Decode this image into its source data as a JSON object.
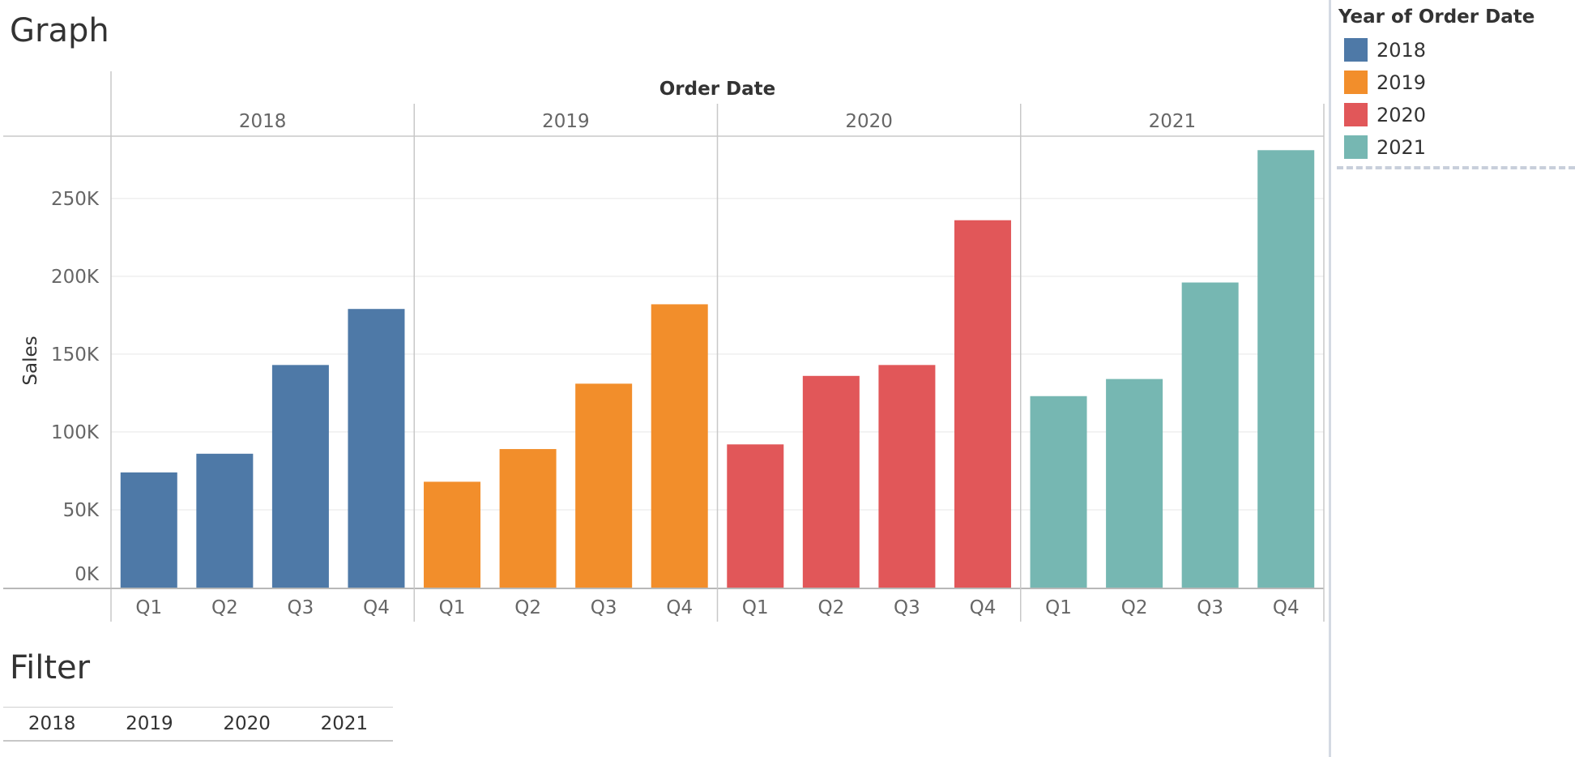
{
  "graph_title": "Graph",
  "filter_title": "Filter",
  "legend": {
    "title": "Year of Order Date",
    "items": [
      {
        "label": "2018",
        "color": "#4e79a7"
      },
      {
        "label": "2019",
        "color": "#f28e2b"
      },
      {
        "label": "2020",
        "color": "#e15759"
      },
      {
        "label": "2021",
        "color": "#76b7b2"
      }
    ]
  },
  "filter": {
    "items": [
      "2018",
      "2019",
      "2020",
      "2021"
    ]
  },
  "chart_data": {
    "type": "bar",
    "column_header": "Order Date",
    "ylabel": "Sales",
    "ylim": [
      0,
      290000
    ],
    "yticks": [
      0,
      50000,
      100000,
      150000,
      200000,
      250000
    ],
    "ytick_labels": [
      "0K",
      "50K",
      "100K",
      "150K",
      "200K",
      "250K"
    ],
    "categories": [
      "Q1",
      "Q2",
      "Q3",
      "Q4"
    ],
    "groups": [
      {
        "name": "2018",
        "color": "#4e79a7",
        "values": [
          74000,
          86000,
          143000,
          179000
        ]
      },
      {
        "name": "2019",
        "color": "#f28e2b",
        "values": [
          68000,
          89000,
          131000,
          182000
        ]
      },
      {
        "name": "2020",
        "color": "#e15759",
        "values": [
          92000,
          136000,
          143000,
          236000
        ]
      },
      {
        "name": "2021",
        "color": "#76b7b2",
        "values": [
          123000,
          134000,
          196000,
          281000
        ]
      }
    ],
    "grid": true
  }
}
